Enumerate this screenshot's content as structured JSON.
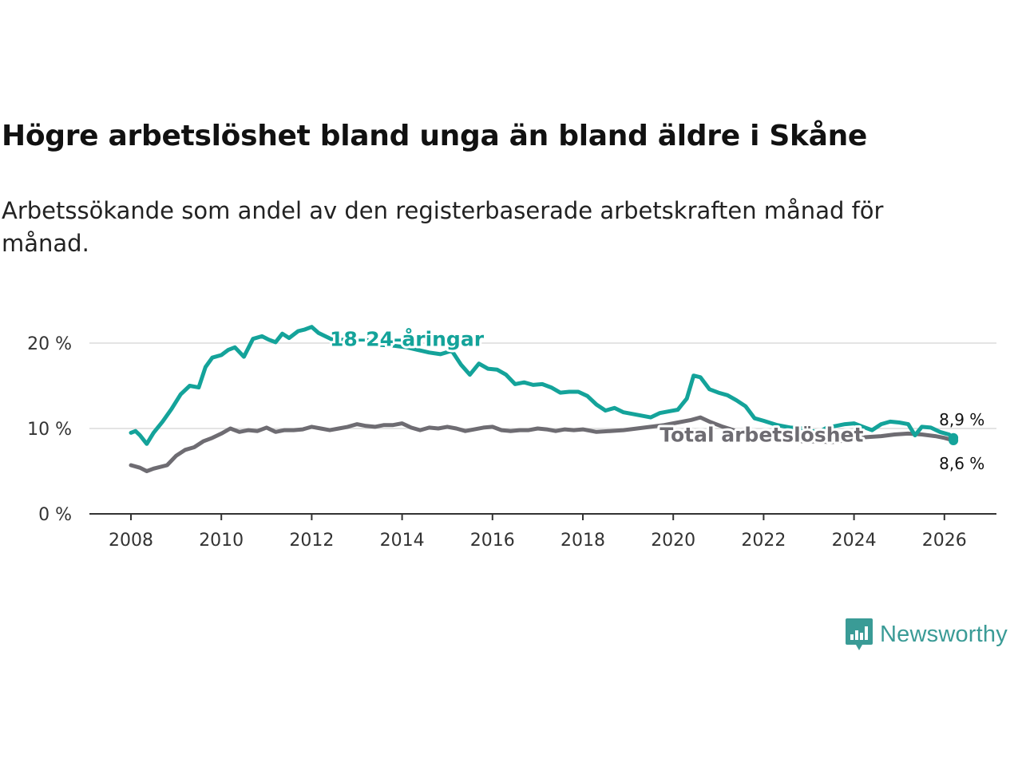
{
  "title": "Högre arbetslöshet bland unga än bland äldre i Skåne",
  "subtitle": "Arbetssökande som andel av den registerbaserade arbetskraften månad för månad.",
  "brand": {
    "name": "Newsworthy",
    "icon": "newsworthy-logo-icon",
    "color": "#3a9b96"
  },
  "chart_data": {
    "type": "line",
    "title": "Högre arbetslöshet bland unga än bland äldre i Skåne",
    "xlabel": "",
    "ylabel": "",
    "xlim": [
      2007.75,
      2027.1
    ],
    "ylim": [
      0,
      22
    ],
    "grid": true,
    "x_ticks": [
      2008,
      2010,
      2012,
      2014,
      2016,
      2018,
      2020,
      2022,
      2024,
      2026
    ],
    "x_tick_labels": [
      "2008",
      "2010",
      "2012",
      "2014",
      "2016",
      "2018",
      "2020",
      "2022",
      "2024",
      "2026"
    ],
    "y_ticks": [
      0,
      10,
      20
    ],
    "y_tick_labels": [
      "0 %",
      "10 %",
      "20 %"
    ],
    "series": [
      {
        "name": "18-24-åringar",
        "color": "#14a39a",
        "label": "18-24-åringar",
        "label_at": [
          2012.4,
          20.5
        ],
        "x": [
          2008.0,
          2008.1,
          2008.2,
          2008.35,
          2008.5,
          2008.7,
          2008.9,
          2009.1,
          2009.3,
          2009.5,
          2009.65,
          2009.8,
          2010.0,
          2010.15,
          2010.3,
          2010.5,
          2010.7,
          2010.9,
          2011.05,
          2011.2,
          2011.35,
          2011.5,
          2011.7,
          2011.85,
          2012.0,
          2012.15,
          2012.3,
          2012.5,
          2012.7,
          2012.9,
          2013.2,
          2013.5,
          2013.8,
          2014.1,
          2014.35,
          2014.6,
          2014.85,
          2015.1,
          2015.3,
          2015.5,
          2015.7,
          2015.9,
          2016.1,
          2016.3,
          2016.5,
          2016.7,
          2016.9,
          2017.1,
          2017.3,
          2017.5,
          2017.7,
          2017.9,
          2018.1,
          2018.3,
          2018.5,
          2018.7,
          2018.9,
          2019.1,
          2019.3,
          2019.5,
          2019.7,
          2019.9,
          2020.1,
          2020.3,
          2020.45,
          2020.6,
          2020.8,
          2021.0,
          2021.2,
          2021.4,
          2021.6,
          2021.8,
          2022.0,
          2022.3,
          2022.6,
          2022.9,
          2023.2,
          2023.4,
          2023.6,
          2023.8,
          2024.0,
          2024.2,
          2024.4,
          2024.6,
          2024.8,
          2025.0,
          2025.2,
          2025.35,
          2025.5,
          2025.7,
          2025.9,
          2026.1,
          2026.2
        ],
        "values": [
          9.5,
          9.7,
          9.2,
          8.2,
          9.5,
          10.8,
          12.3,
          14.0,
          15.0,
          14.8,
          17.2,
          18.3,
          18.6,
          19.2,
          19.5,
          18.4,
          20.5,
          20.8,
          20.4,
          20.1,
          21.1,
          20.6,
          21.4,
          21.6,
          21.9,
          21.2,
          20.8,
          20.3,
          20.4,
          20.5,
          20.4,
          19.8,
          19.7,
          19.5,
          19.2,
          18.9,
          18.7,
          19.1,
          17.5,
          16.3,
          17.6,
          17.0,
          16.9,
          16.3,
          15.2,
          15.4,
          15.1,
          15.2,
          14.8,
          14.2,
          14.3,
          14.3,
          13.8,
          12.8,
          12.1,
          12.4,
          11.9,
          11.7,
          11.5,
          11.3,
          11.8,
          12.0,
          12.2,
          13.5,
          16.2,
          16.0,
          14.6,
          14.2,
          13.9,
          13.3,
          12.6,
          11.2,
          10.9,
          10.4,
          10.1,
          10.0,
          9.5,
          10.1,
          10.3,
          10.5,
          10.6,
          10.2,
          9.8,
          10.5,
          10.8,
          10.7,
          10.5,
          9.2,
          10.2,
          10.1,
          9.6,
          9.3,
          8.9
        ],
        "end_label": "8,9 %"
      },
      {
        "name": "Total arbetslöshet",
        "color": "#6e6c72",
        "label": "Total arbetslöshet",
        "label_at": [
          2019.7,
          9.3
        ],
        "x": [
          2008.0,
          2008.2,
          2008.35,
          2008.5,
          2008.8,
          2009.0,
          2009.2,
          2009.4,
          2009.6,
          2009.8,
          2010.0,
          2010.2,
          2010.4,
          2010.6,
          2010.8,
          2011.0,
          2011.2,
          2011.4,
          2011.6,
          2011.8,
          2012.0,
          2012.2,
          2012.4,
          2012.6,
          2012.8,
          2013.0,
          2013.2,
          2013.4,
          2013.6,
          2013.8,
          2014.0,
          2014.2,
          2014.4,
          2014.6,
          2014.8,
          2015.0,
          2015.2,
          2015.4,
          2015.6,
          2015.8,
          2016.0,
          2016.2,
          2016.4,
          2016.6,
          2016.8,
          2017.0,
          2017.2,
          2017.4,
          2017.6,
          2017.8,
          2018.0,
          2018.3,
          2018.6,
          2018.9,
          2019.2,
          2019.5,
          2019.8,
          2020.1,
          2020.4,
          2020.6,
          2020.8,
          2021.1,
          2021.4,
          2021.7,
          2022.0,
          2022.3,
          2022.6,
          2022.9,
          2023.2,
          2023.5,
          2023.8,
          2024.0,
          2024.3,
          2024.6,
          2024.9,
          2025.2,
          2025.5,
          2025.8,
          2026.0,
          2026.2
        ],
        "values": [
          5.7,
          5.4,
          5.0,
          5.3,
          5.7,
          6.8,
          7.5,
          7.8,
          8.5,
          8.9,
          9.4,
          10.0,
          9.6,
          9.8,
          9.7,
          10.1,
          9.6,
          9.8,
          9.8,
          9.9,
          10.2,
          10.0,
          9.8,
          10.0,
          10.2,
          10.5,
          10.3,
          10.2,
          10.4,
          10.4,
          10.6,
          10.1,
          9.8,
          10.1,
          10.0,
          10.2,
          10.0,
          9.7,
          9.9,
          10.1,
          10.2,
          9.8,
          9.7,
          9.8,
          9.8,
          10.0,
          9.9,
          9.7,
          9.9,
          9.8,
          9.9,
          9.6,
          9.7,
          9.8,
          10.0,
          10.2,
          10.4,
          10.7,
          11.0,
          11.3,
          10.8,
          10.2,
          9.7,
          9.3,
          9.0,
          8.7,
          8.6,
          8.5,
          8.5,
          8.4,
          8.6,
          8.9,
          9.0,
          9.1,
          9.3,
          9.4,
          9.3,
          9.1,
          8.9,
          8.6
        ],
        "end_label": "8,6 %"
      }
    ]
  }
}
